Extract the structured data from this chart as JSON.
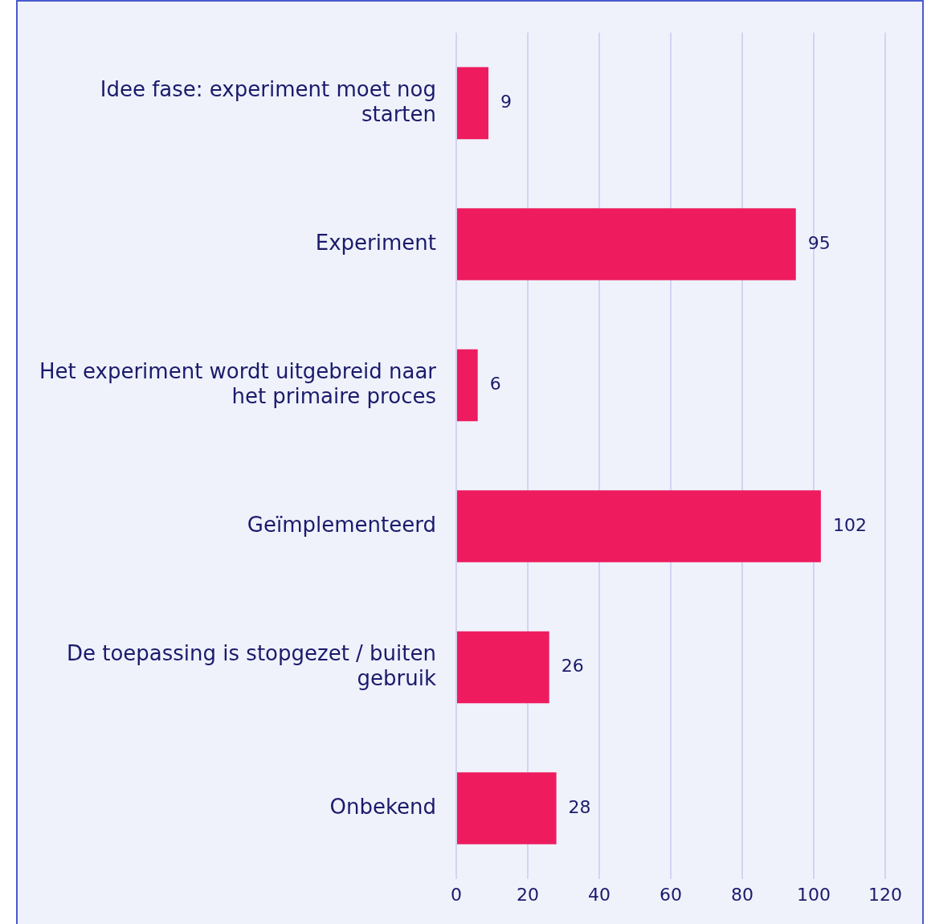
{
  "chart_data": {
    "type": "bar",
    "orientation": "horizontal",
    "categories": [
      "Idee fase: experiment moet nog starten",
      "Experiment",
      "Het experiment wordt uitgebreid naar het primaire proces",
      "Geïmplementeerd",
      "De toepassing is stopgezet / buiten gebruik",
      "Onbekend"
    ],
    "values": [
      9,
      95,
      6,
      102,
      26,
      28
    ],
    "color": "#ee1c5f",
    "xlim": [
      0,
      120
    ],
    "xticks": [
      0,
      20,
      40,
      60,
      80,
      100,
      120
    ],
    "grid": "x",
    "data_labels": true,
    "legend": false
  }
}
